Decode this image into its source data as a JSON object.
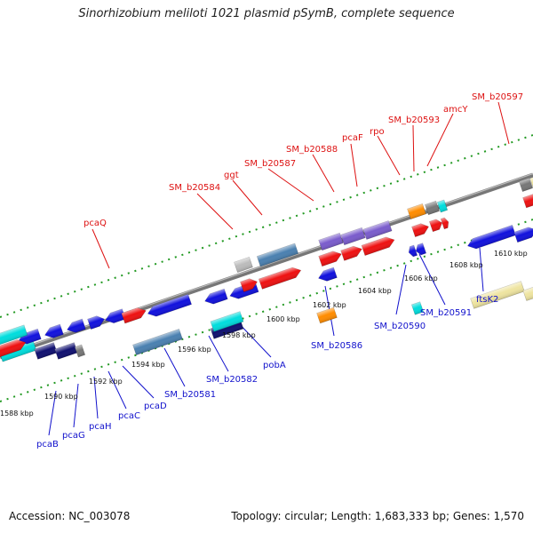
{
  "title": "Sinorhizobium meliloti 1021 plasmid pSymB, complete sequence",
  "accession_text": "Accession: NC_003078",
  "summary_text": "Topology: circular; Length: 1,683,333 bp; Genes: 1,570",
  "colors": {
    "red": "#ee1111",
    "blue": "#1111dd",
    "navy": "#101070",
    "cyan": "#00dddd",
    "orange": "#ff8c00",
    "purple": "#7a5ccc",
    "steelblue": "#4a80b0",
    "gray": "#777777",
    "lightgray": "#bbbbbb",
    "khaki": "#eee4a0",
    "backbone": "#888888",
    "tick": "#229922"
  },
  "scale_ticks": [
    "1588 kbp",
    "1590 kbp",
    "1592 kbp",
    "1594 kbp",
    "1596 kbp",
    "1598 kbp",
    "1600 kbp",
    "1602 kbp",
    "1604 kbp",
    "1606 kbp",
    "1608 kbp",
    "1610 kbp"
  ],
  "upper_labels": [
    "pcaQ",
    "SM_b20584",
    "ggt",
    "SM_b20587",
    "SM_b20588",
    "pcaF",
    "rpo",
    "SM_b20593",
    "amcY",
    "SM_b20597"
  ],
  "lower_labels": [
    "pcaB",
    "pcaG",
    "pcaH",
    "pcaC",
    "pcaD",
    "SM_b20581",
    "SM_b20582",
    "pobA",
    "SM_b20586",
    "SM_b20590",
    "SM_b20591",
    "ftsK2"
  ]
}
